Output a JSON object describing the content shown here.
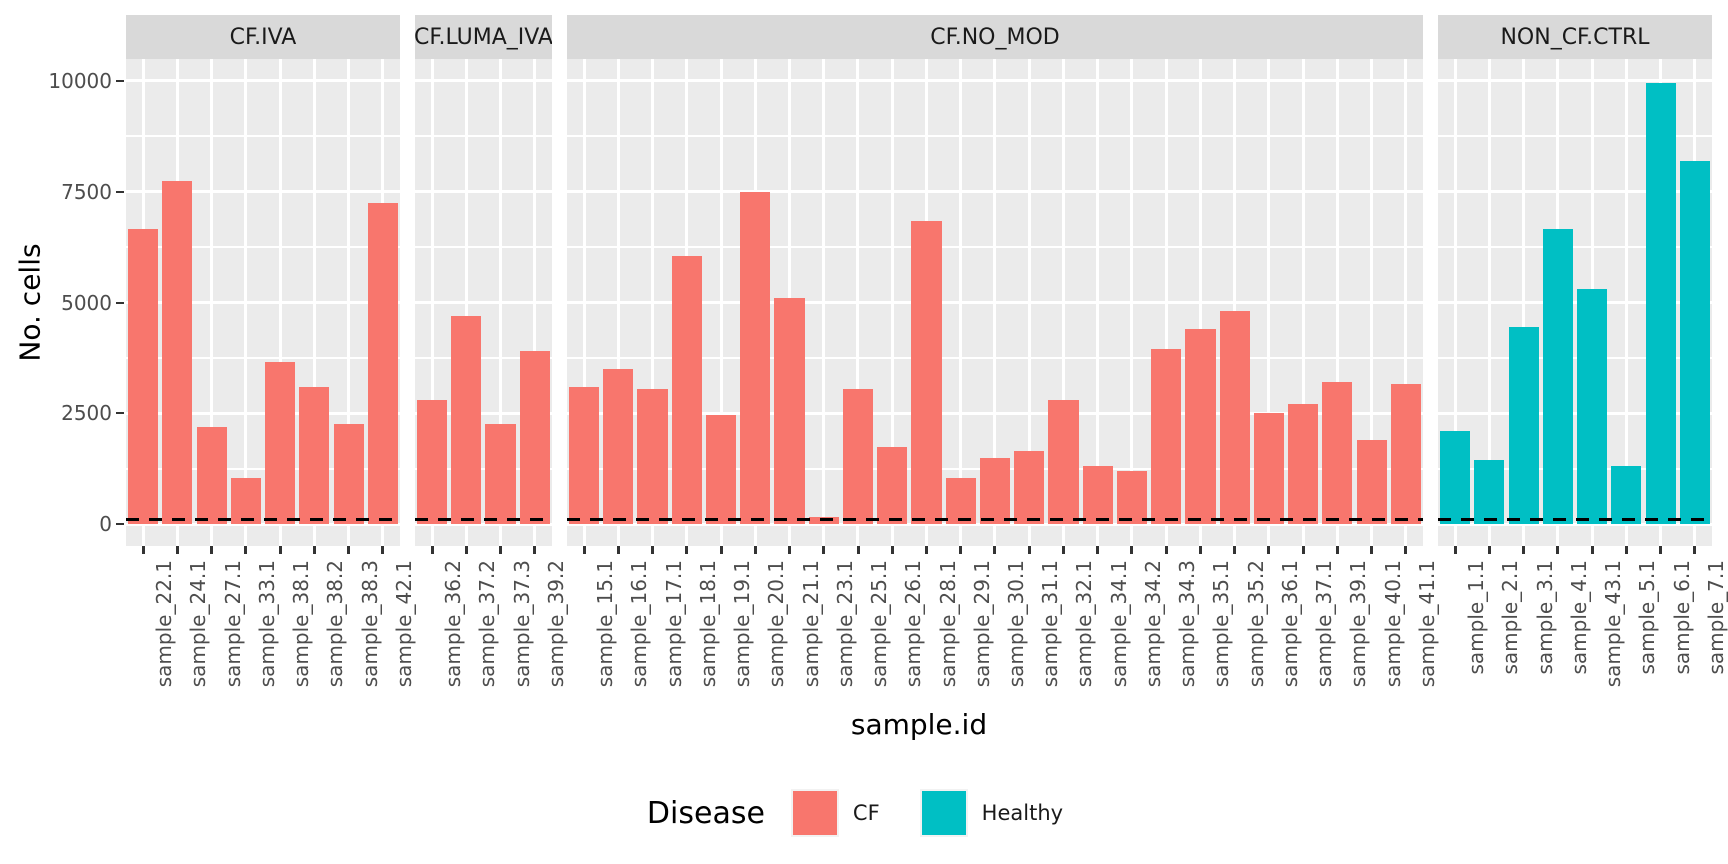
{
  "colors": {
    "cf_bar": "#F8766D",
    "healthy_bar": "#00BFC4",
    "panel_bg": "#EBEBEB",
    "strip_bg": "#D9D9D9",
    "gridline": "#FFFFFF",
    "axis_text": "#4D4D4D",
    "tick_mark": "#333333",
    "dashed_line": "#000000"
  },
  "chart_data": {
    "type": "bar",
    "title": "",
    "xlabel": "sample.id",
    "ylabel": "No. cells",
    "ylim": [
      0,
      10000
    ],
    "y_ticks": [
      0,
      2500,
      5000,
      7500,
      10000
    ],
    "y_tick_labels": [
      "0",
      "2500",
      "5000",
      "7500",
      "10000"
    ],
    "y_minor_ticks": [
      1250,
      3750,
      6250,
      8750
    ],
    "panel_value_range": [
      -495,
      10495
    ],
    "grid": "white on grey panels, major and minor horizontal lines, vertical line per sample",
    "dashed_line_y": 100,
    "legend_position": "bottom-center",
    "legend": {
      "title": "Disease",
      "entries": [
        {
          "label": "CF",
          "color": "#F8766D"
        },
        {
          "label": "Healthy",
          "color": "#00BFC4"
        }
      ]
    },
    "facets": [
      {
        "label": "CF.IVA",
        "group": "CF",
        "samples": [
          "sample_22.1",
          "sample_24.1",
          "sample_27.1",
          "sample_33.1",
          "sample_38.1",
          "sample_38.2",
          "sample_38.3",
          "sample_42.1"
        ],
        "values": [
          6650,
          7750,
          2200,
          1050,
          3650,
          3100,
          2250,
          7250
        ]
      },
      {
        "label": "CF.LUMA_IVA",
        "group": "CF",
        "samples": [
          "sample_36.2",
          "sample_37.2",
          "sample_37.3",
          "sample_39.2"
        ],
        "values": [
          2800,
          4700,
          2250,
          3900
        ]
      },
      {
        "label": "CF.NO_MOD",
        "group": "CF",
        "samples": [
          "sample_15.1",
          "sample_16.1",
          "sample_17.1",
          "sample_18.1",
          "sample_19.1",
          "sample_20.1",
          "sample_21.1",
          "sample_23.1",
          "sample_25.1",
          "sample_26.1",
          "sample_28.1",
          "sample_29.1",
          "sample_30.1",
          "sample_31.1",
          "sample_32.1",
          "sample_34.1",
          "sample_34.2",
          "sample_34.3",
          "sample_35.1",
          "sample_35.2",
          "sample_36.1",
          "sample_37.1",
          "sample_39.1",
          "sample_40.1",
          "sample_41.1"
        ],
        "values": [
          3100,
          3500,
          3050,
          6050,
          2450,
          7500,
          5100,
          150,
          3050,
          1750,
          6850,
          1050,
          1500,
          1650,
          2800,
          1300,
          1200,
          3950,
          4400,
          4800,
          2500,
          2700,
          3200,
          1900,
          3150
        ]
      },
      {
        "label": "NON_CF.CTRL",
        "group": "Healthy",
        "samples": [
          "sample_1.1",
          "sample_2.1",
          "sample_3.1",
          "sample_4.1",
          "sample_43.1",
          "sample_5.1",
          "sample_6.1",
          "sample_7.1"
        ],
        "values": [
          2100,
          1450,
          4450,
          6650,
          5300,
          1300,
          9950,
          8200
        ]
      }
    ]
  }
}
